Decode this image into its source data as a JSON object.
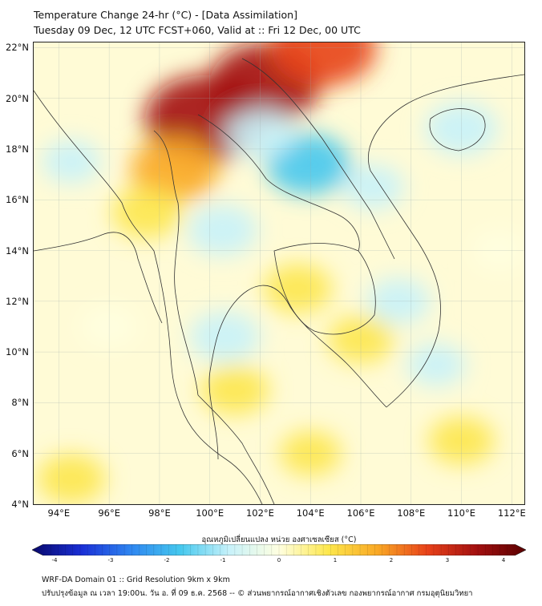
{
  "title_line1": "Temperature Change 24-hr (°C) - [Data Assimilation]",
  "title_line2": "Tuesday 09 Dec, 12 UTC FCST+060, Valid at :: Fri 12 Dec, 00 UTC",
  "map": {
    "lon_range": [
      93,
      112.5
    ],
    "lat_range": [
      4,
      22.2
    ],
    "y_ticks": [
      {
        "lat": 22,
        "label": "22°N"
      },
      {
        "lat": 20,
        "label": "20°N"
      },
      {
        "lat": 18,
        "label": "18°N"
      },
      {
        "lat": 16,
        "label": "16°N"
      },
      {
        "lat": 14,
        "label": "14°N"
      },
      {
        "lat": 12,
        "label": "12°N"
      },
      {
        "lat": 10,
        "label": "10°N"
      },
      {
        "lat": 8,
        "label": "8°N"
      },
      {
        "lat": 6,
        "label": "6°N"
      },
      {
        "lat": 4,
        "label": "4°N"
      }
    ],
    "x_ticks": [
      {
        "lon": 94,
        "label": "94°E"
      },
      {
        "lon": 96,
        "label": "96°E"
      },
      {
        "lon": 98,
        "label": "98°E"
      },
      {
        "lon": 100,
        "label": "100°E"
      },
      {
        "lon": 102,
        "label": "102°E"
      },
      {
        "lon": 104,
        "label": "104°E"
      },
      {
        "lon": 106,
        "label": "106°E"
      },
      {
        "lon": 108,
        "label": "108°E"
      },
      {
        "lon": 110,
        "label": "110°E"
      },
      {
        "lon": 112,
        "label": "112°E"
      }
    ],
    "field_anomalies": [
      {
        "lon": 99.8,
        "lat": 19.2,
        "value": 3.2
      },
      {
        "lon": 102.2,
        "lat": 20.6,
        "value": 2.8
      },
      {
        "lon": 104.5,
        "lat": 22.0,
        "value": 2.6
      },
      {
        "lon": 98.6,
        "lat": 17.2,
        "value": 1.8
      },
      {
        "lon": 97.5,
        "lat": 15.5,
        "value": 1.0
      },
      {
        "lon": 103.9,
        "lat": 17.4,
        "value": -1.6
      },
      {
        "lon": 102.0,
        "lat": 18.6,
        "value": -0.9
      },
      {
        "lon": 100.5,
        "lat": 14.8,
        "value": -1.0
      },
      {
        "lon": 100.6,
        "lat": 10.6,
        "value": -1.0
      },
      {
        "lon": 110.0,
        "lat": 18.8,
        "value": -1.1
      },
      {
        "lon": 106.5,
        "lat": 16.5,
        "value": -0.6
      },
      {
        "lon": 107.5,
        "lat": 12.0,
        "value": -0.7
      },
      {
        "lon": 96.0,
        "lat": 11.0,
        "value": -0.4
      },
      {
        "lon": 94.5,
        "lat": 17.5,
        "value": -0.5
      },
      {
        "lon": 103.5,
        "lat": 12.5,
        "value": 0.9
      },
      {
        "lon": 106.0,
        "lat": 10.5,
        "value": 0.8
      },
      {
        "lon": 101.0,
        "lat": 8.5,
        "value": 0.9
      },
      {
        "lon": 104.0,
        "lat": 6.0,
        "value": 0.6
      },
      {
        "lon": 110.0,
        "lat": 6.5,
        "value": 0.8
      },
      {
        "lon": 94.5,
        "lat": 5.0,
        "value": 0.9
      },
      {
        "lon": 109.0,
        "lat": 9.5,
        "value": -0.5
      },
      {
        "lon": 111.5,
        "lat": 14.0,
        "value": 0.3
      }
    ]
  },
  "colorbar": {
    "label": "อุณหภูมิเปลี่ยนแปลง หน่วย องศาเซลเซียส (°C)",
    "min": -4,
    "max": 4,
    "ticks": [
      "-4",
      "-3",
      "-2",
      "-1",
      "0",
      "1",
      "2",
      "3",
      "4"
    ],
    "colors": [
      "#08086b",
      "#1a2fd6",
      "#2f86f0",
      "#45c8ee",
      "#c8f2fa",
      "#ffffe0",
      "#fde74c",
      "#f9a825",
      "#e8421a",
      "#a31010",
      "#5a0000"
    ]
  },
  "footer_line1": "WRF-DA Domain 01 :: Grid Resolution 9km x 9km",
  "footer_line2": "ปรับปรุงข้อมูล ณ เวลา 19:00น. วัน อ. ที่ 09 ธ.ค. 2568 -- © ส่วนพยากรณ์อากาศเชิงตัวเลข กองพยากรณ์อากาศ กรมอุตุนิยมวิทยา"
}
